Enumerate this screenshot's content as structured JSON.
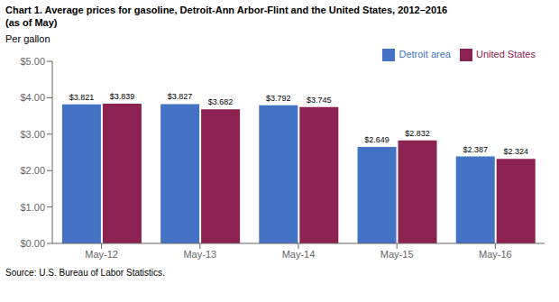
{
  "chart_data": {
    "type": "bar",
    "title": "Chart 1. Average prices for gasoline, Detroit-Ann Arbor-Flint and the United States, 2012–2016",
    "subtitle": "(as of May)",
    "ylabel": "Per gallon",
    "annotations": [
      "Source: U.S. Bureau of Labor Statistics."
    ],
    "categories": [
      "May-12",
      "May-13",
      "May-14",
      "May-15",
      "May-16"
    ],
    "series": [
      {
        "name": "Detroit area",
        "color": "#4472C4",
        "values": [
          3.821,
          3.827,
          3.792,
          2.649,
          2.387
        ],
        "value_labels": [
          "$3.821",
          "$3.827",
          "$3.792",
          "$2.649",
          "$2.387"
        ]
      },
      {
        "name": "United States",
        "color": "#8B2252",
        "values": [
          3.839,
          3.682,
          3.745,
          2.832,
          2.324
        ],
        "value_labels": [
          "$3.839",
          "$3.682",
          "$3.745",
          "$2.832",
          "$2.324"
        ]
      }
    ],
    "ylim": [
      0,
      5.0
    ],
    "yticks": [
      {
        "value": 0.0,
        "label": "$0.00"
      },
      {
        "value": 1.0,
        "label": "$1.00"
      },
      {
        "value": 2.0,
        "label": "$2.00"
      },
      {
        "value": 3.0,
        "label": "$3.00"
      },
      {
        "value": 4.0,
        "label": "$4.00"
      },
      {
        "value": 5.0,
        "label": "$5.00"
      }
    ],
    "data_labels": true,
    "legend": "top-right",
    "grid": false
  }
}
